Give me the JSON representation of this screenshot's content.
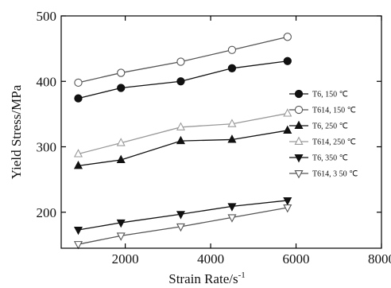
{
  "chart_data": {
    "type": "line",
    "xlabel": "Strain Rate/s",
    "xlabel_superscript": "-1",
    "ylabel": "Yield Stress/MPa",
    "xlim": [
      500,
      8000
    ],
    "ylim": [
      145,
      500
    ],
    "xticks": [
      2000,
      4000,
      6000,
      8000
    ],
    "xtick_labels": [
      "2000",
      "4000",
      "6000",
      "8000"
    ],
    "yticks": [
      200,
      300,
      400,
      500
    ],
    "ytick_labels": [
      "200",
      "300",
      "400",
      "500"
    ],
    "grid": false,
    "legend_position": "right",
    "series": [
      {
        "name": "T6, 150  ℃",
        "marker": "circle-filled",
        "color": "#111111",
        "x": [
          900,
          1900,
          3300,
          4500,
          5800
        ],
        "y": [
          374,
          390,
          400,
          420,
          431
        ]
      },
      {
        "name": "T614, 150 ℃",
        "marker": "circle-open",
        "color": "#555555",
        "x": [
          900,
          1900,
          3300,
          4500,
          5800
        ],
        "y": [
          398,
          413,
          430,
          448,
          468
        ]
      },
      {
        "name": "T6, 250  ℃",
        "marker": "triangle-up-filled",
        "color": "#111111",
        "x": [
          900,
          1900,
          3300,
          4500,
          5800
        ],
        "y": [
          271,
          280,
          309,
          311,
          325
        ]
      },
      {
        "name": "T614, 250  ℃",
        "marker": "triangle-up-open",
        "color": "#9a9a9a",
        "x": [
          900,
          1900,
          3300,
          4500,
          5800
        ],
        "y": [
          289,
          306,
          330,
          335,
          351
        ]
      },
      {
        "name": "T6, 350  ℃",
        "marker": "triangle-down-filled",
        "color": "#111111",
        "x": [
          900,
          1900,
          3300,
          4500,
          5800
        ],
        "y": [
          173,
          184,
          197,
          209,
          218
        ]
      },
      {
        "name": "T614, 3 50 ℃",
        "marker": "triangle-down-open",
        "color": "#555555",
        "x": [
          900,
          1900,
          3300,
          4500,
          5800
        ],
        "y": [
          151,
          164,
          178,
          192,
          207
        ]
      }
    ]
  }
}
